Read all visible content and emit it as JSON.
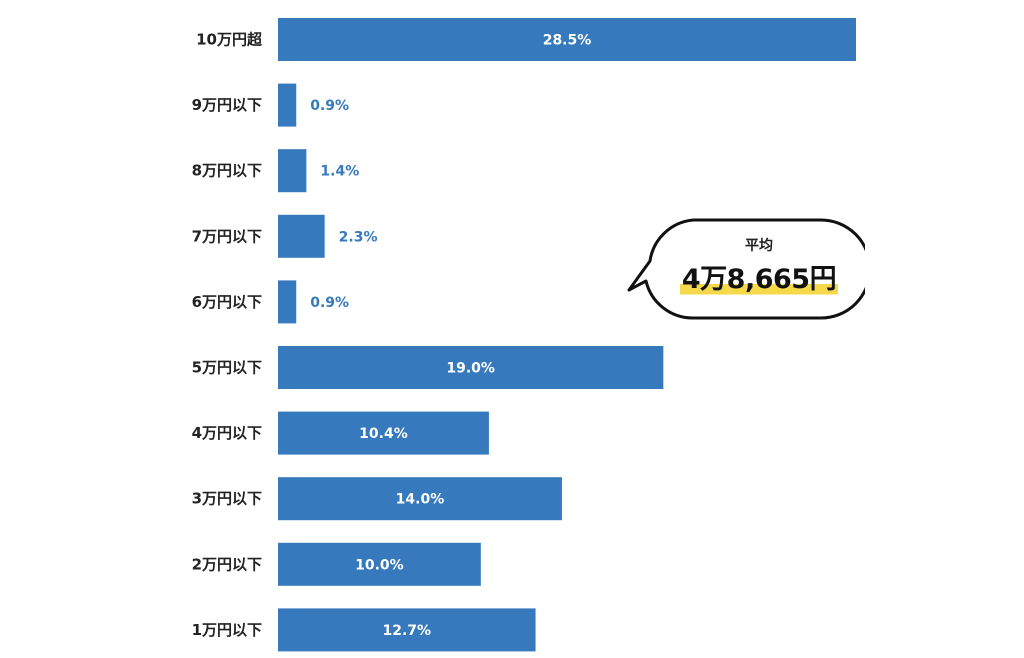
{
  "chart_data": {
    "type": "bar",
    "orientation": "horizontal",
    "categories": [
      "10万円超",
      "9万円以下",
      "8万円以下",
      "7万円以下",
      "6万円以下",
      "5万円以下",
      "4万円以下",
      "3万円以下",
      "2万円以下",
      "1万円以下"
    ],
    "values": [
      28.5,
      0.9,
      1.4,
      2.3,
      0.9,
      19.0,
      10.4,
      14.0,
      10.0,
      12.7
    ],
    "value_labels": [
      "28.5%",
      "0.9%",
      "1.4%",
      "2.3%",
      "0.9%",
      "19.0%",
      "10.4%",
      "14.0%",
      "10.0%",
      "12.7%"
    ],
    "title": "",
    "xlabel": "",
    "ylabel": "",
    "grid": false,
    "legend": "none"
  },
  "colors": {
    "bar": "#3679bd",
    "label_inside": "#ffffff",
    "label_outside": "#3679bd",
    "highlight": "#f6d94a"
  },
  "callout": {
    "label": "平均",
    "value": "4万8,665円"
  }
}
